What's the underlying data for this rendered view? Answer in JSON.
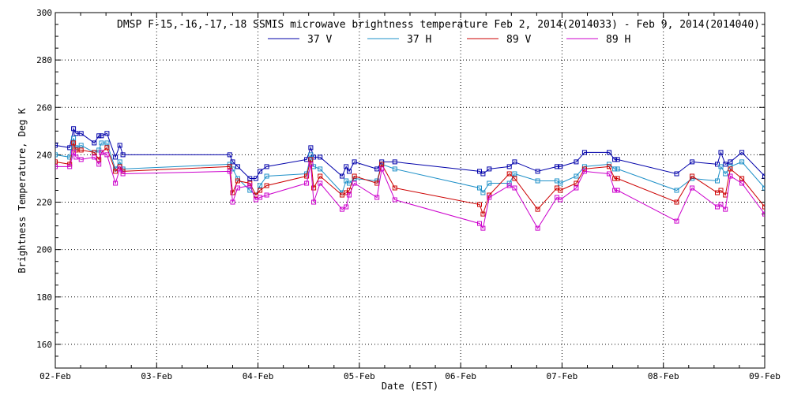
{
  "chart_data": {
    "type": "line",
    "title": "DMSP F-15,-16,-17,-18 SSMIS microwave brightness temperature Feb  2, 2014(2014033) - Feb  9, 2014(2014040)",
    "xlabel": "Date (EST)",
    "ylabel": "Brightness Temperature, Deg K",
    "xlim": [
      0,
      7
    ],
    "ylim": [
      150,
      300
    ],
    "x_ticks": [
      {
        "value": 0,
        "label": "02-Feb"
      },
      {
        "value": 1,
        "label": "03-Feb"
      },
      {
        "value": 2,
        "label": "04-Feb"
      },
      {
        "value": 3,
        "label": "05-Feb"
      },
      {
        "value": 4,
        "label": "06-Feb"
      },
      {
        "value": 5,
        "label": "07-Feb"
      },
      {
        "value": 6,
        "label": "08-Feb"
      },
      {
        "value": 7,
        "label": "09-Feb"
      }
    ],
    "y_ticks": [
      {
        "value": 160,
        "label": "160"
      },
      {
        "value": 180,
        "label": "180"
      },
      {
        "value": 200,
        "label": "200"
      },
      {
        "value": 220,
        "label": "220"
      },
      {
        "value": 240,
        "label": "240"
      },
      {
        "value": 260,
        "label": "260"
      },
      {
        "value": 280,
        "label": "280"
      },
      {
        "value": 300,
        "label": "300"
      }
    ],
    "grid": true,
    "legend_position": "top-center",
    "series": [
      {
        "name": "37 V",
        "color": "#0000aa",
        "x": [
          0.0,
          0.142,
          0.18,
          0.205,
          0.255,
          0.384,
          0.43,
          0.455,
          0.51,
          0.593,
          0.637,
          0.667,
          1.721,
          1.75,
          1.8,
          1.92,
          1.98,
          2.02,
          2.086,
          2.48,
          2.521,
          2.55,
          2.613,
          2.83,
          2.87,
          2.9,
          2.951,
          3.174,
          3.221,
          3.35,
          4.186,
          4.22,
          4.282,
          4.48,
          4.532,
          4.76,
          4.95,
          4.983,
          5.14,
          5.222,
          5.464,
          5.52,
          5.548,
          6.131,
          6.284,
          6.532,
          6.567,
          6.612,
          6.661,
          6.775,
          7.0
        ],
        "values": [
          244,
          243,
          251,
          249,
          249,
          245,
          248,
          248,
          249,
          239,
          244,
          240,
          240,
          237,
          235,
          230,
          230,
          233,
          235,
          238,
          243,
          239,
          239,
          231,
          235,
          233,
          237,
          234,
          237,
          237,
          233,
          232,
          234,
          235,
          237,
          233,
          235,
          235,
          237,
          241,
          241,
          238,
          238,
          232,
          237,
          236,
          241,
          236,
          237,
          241,
          231
        ]
      },
      {
        "name": "37 H",
        "color": "#1e90c8",
        "x": [
          0.0,
          0.142,
          0.18,
          0.205,
          0.255,
          0.384,
          0.43,
          0.455,
          0.51,
          0.593,
          0.637,
          0.667,
          1.721,
          1.75,
          1.8,
          1.92,
          1.98,
          2.02,
          2.086,
          2.48,
          2.521,
          2.55,
          2.613,
          2.83,
          2.87,
          2.9,
          2.951,
          3.174,
          3.221,
          3.35,
          4.186,
          4.22,
          4.282,
          4.48,
          4.532,
          4.76,
          4.95,
          4.983,
          5.14,
          5.222,
          5.464,
          5.52,
          5.548,
          6.131,
          6.284,
          6.532,
          6.567,
          6.612,
          6.661,
          6.775,
          7.0
        ],
        "values": [
          240,
          239,
          247,
          243,
          244,
          241,
          242,
          245,
          245,
          234,
          237,
          234,
          236,
          234,
          230,
          225,
          223,
          227,
          231,
          232,
          240,
          235,
          234,
          224,
          229,
          228,
          230,
          229,
          236,
          234,
          226,
          224,
          228,
          228,
          232,
          229,
          229,
          228,
          231,
          235,
          236,
          234,
          234,
          225,
          230,
          229,
          235,
          232,
          235,
          237,
          226
        ]
      },
      {
        "name": "89 V",
        "color": "#cc0000",
        "x": [
          0.0,
          0.142,
          0.18,
          0.205,
          0.255,
          0.384,
          0.43,
          0.455,
          0.51,
          0.593,
          0.637,
          0.667,
          1.721,
          1.75,
          1.8,
          1.92,
          1.98,
          2.02,
          2.086,
          2.48,
          2.521,
          2.55,
          2.613,
          2.83,
          2.87,
          2.9,
          2.951,
          3.174,
          3.221,
          3.35,
          4.186,
          4.22,
          4.282,
          4.48,
          4.532,
          4.76,
          4.95,
          4.983,
          5.14,
          5.222,
          5.464,
          5.52,
          5.548,
          6.131,
          6.284,
          6.532,
          6.567,
          6.612,
          6.661,
          6.775,
          7.0
        ],
        "values": [
          237,
          236,
          245,
          242,
          242,
          241,
          238,
          241,
          243,
          233,
          235,
          233,
          235,
          224,
          229,
          228,
          223,
          225,
          227,
          231,
          238,
          226,
          231,
          223,
          224,
          225,
          231,
          228,
          236,
          226,
          219,
          215,
          223,
          232,
          230,
          217,
          226,
          225,
          228,
          234,
          235,
          230,
          230,
          220,
          231,
          224,
          225,
          223,
          234,
          230,
          218
        ]
      },
      {
        "name": "89 H",
        "color": "#cc00cc",
        "x": [
          0.0,
          0.142,
          0.18,
          0.205,
          0.255,
          0.384,
          0.43,
          0.455,
          0.51,
          0.593,
          0.637,
          0.667,
          1.721,
          1.75,
          1.8,
          1.92,
          1.98,
          2.02,
          2.086,
          2.48,
          2.521,
          2.55,
          2.613,
          2.83,
          2.87,
          2.9,
          2.951,
          3.174,
          3.221,
          3.35,
          4.186,
          4.22,
          4.282,
          4.48,
          4.532,
          4.76,
          4.95,
          4.983,
          5.14,
          5.222,
          5.464,
          5.52,
          5.548,
          6.131,
          6.284,
          6.532,
          6.567,
          6.612,
          6.661,
          6.775,
          7.0
        ],
        "values": [
          235,
          235,
          241,
          239,
          238,
          239,
          236,
          241,
          240,
          228,
          234,
          232,
          233,
          220,
          226,
          227,
          221,
          222,
          223,
          228,
          236,
          220,
          228,
          217,
          218,
          223,
          228,
          222,
          234,
          221,
          211,
          209,
          222,
          227,
          226,
          209,
          222,
          221,
          226,
          233,
          232,
          225,
          225,
          212,
          226,
          218,
          219,
          217,
          231,
          228,
          215
        ]
      }
    ]
  }
}
